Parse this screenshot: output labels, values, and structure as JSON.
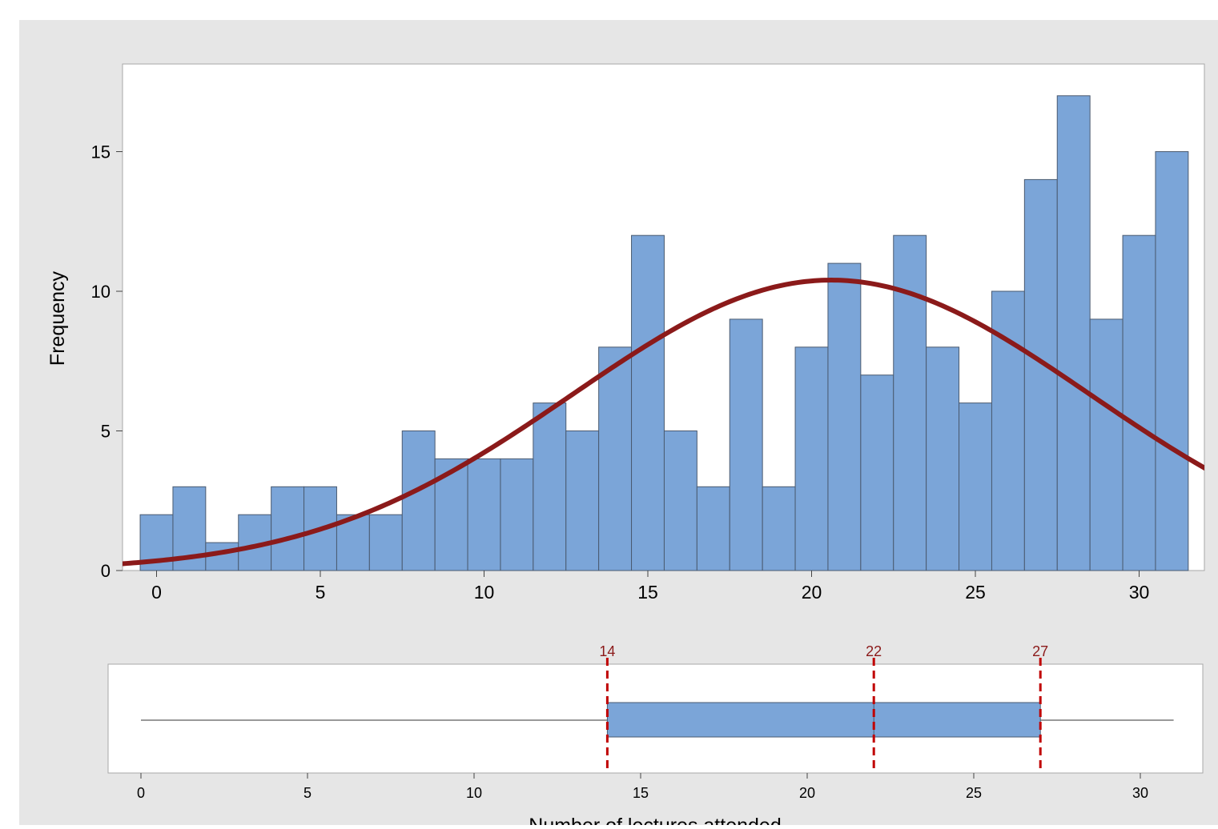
{
  "chart_data": [
    {
      "type": "bar",
      "subtype": "histogram",
      "ylabel": "Frequency",
      "xlim": [
        -1,
        32
      ],
      "ylim": [
        0,
        17.8
      ],
      "xticks": [
        0,
        5,
        10,
        15,
        20,
        25,
        30
      ],
      "yticks": [
        0,
        5,
        10,
        15
      ],
      "bin_width": 1,
      "bins": [
        {
          "center": 0,
          "count": 2
        },
        {
          "center": 1,
          "count": 3
        },
        {
          "center": 2,
          "count": 1
        },
        {
          "center": 3,
          "count": 2
        },
        {
          "center": 4,
          "count": 3
        },
        {
          "center": 5,
          "count": 3
        },
        {
          "center": 6,
          "count": 2
        },
        {
          "center": 7,
          "count": 2
        },
        {
          "center": 8,
          "count": 5
        },
        {
          "center": 9,
          "count": 4
        },
        {
          "center": 10,
          "count": 4
        },
        {
          "center": 11,
          "count": 4
        },
        {
          "center": 12,
          "count": 6
        },
        {
          "center": 13,
          "count": 5
        },
        {
          "center": 14,
          "count": 8
        },
        {
          "center": 15,
          "count": 12
        },
        {
          "center": 16,
          "count": 5
        },
        {
          "center": 17,
          "count": 3
        },
        {
          "center": 18,
          "count": 9
        },
        {
          "center": 19,
          "count": 3
        },
        {
          "center": 20,
          "count": 8
        },
        {
          "center": 21,
          "count": 11
        },
        {
          "center": 22,
          "count": 7
        },
        {
          "center": 23,
          "count": 12
        },
        {
          "center": 24,
          "count": 8
        },
        {
          "center": 25,
          "count": 6
        },
        {
          "center": 26,
          "count": 10
        },
        {
          "center": 27,
          "count": 14
        },
        {
          "center": 28,
          "count": 17
        },
        {
          "center": 29,
          "count": 9
        },
        {
          "center": 30,
          "count": 12
        },
        {
          "center": 31,
          "count": 15
        }
      ],
      "fit_curve": {
        "type": "normal",
        "peak": 10.4,
        "mean": 20.6,
        "sd": 7.9
      },
      "colors": {
        "bar": "#7BA5D8",
        "bar_edge": "#4a5a70",
        "curve": "#8B1A1A",
        "frame": "#a8a8a8"
      }
    },
    {
      "type": "boxplot",
      "xlabel": "Number of lectures attended",
      "xlim": [
        -1,
        32
      ],
      "xticks": [
        0,
        5,
        10,
        15,
        20,
        25,
        30
      ],
      "whisker_low": 0,
      "q1": 14,
      "median": 22,
      "q3": 27,
      "whisker_high": 31,
      "markers": [
        {
          "value": 14,
          "label": "14"
        },
        {
          "value": 22,
          "label": "22"
        },
        {
          "value": 27,
          "label": "27"
        }
      ],
      "colors": {
        "box": "#7BA5D8",
        "marker": "#C00000",
        "marker_label": "#8B1A1A"
      }
    }
  ],
  "colors": {
    "background": "#E6E6E6",
    "panel": "#FFFFFF"
  }
}
